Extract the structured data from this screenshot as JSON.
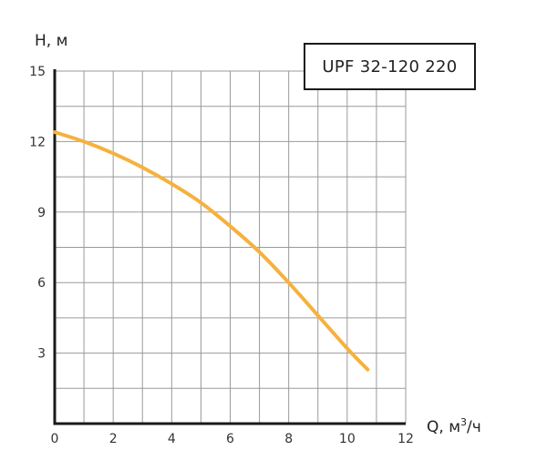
{
  "chart_data": {
    "type": "line",
    "title": "UPF 32-120 220",
    "ylabel": "H, м",
    "xlabel_prefix": "Q, м",
    "xlabel_sup": "3",
    "xlabel_suffix": "/ч",
    "xlim": [
      0,
      12
    ],
    "ylim": [
      0,
      15
    ],
    "x_ticks": [
      0,
      2,
      4,
      6,
      8,
      10,
      12
    ],
    "y_ticks": [
      3,
      6,
      9,
      12,
      15
    ],
    "x_grid_step": 1,
    "y_grid_step": 1.5,
    "grid": true,
    "colors": {
      "curve": "#f6b13d",
      "grid": "#9a9a9a",
      "axis": "#1a1a1a"
    },
    "series": [
      {
        "values_x": [
          0,
          1,
          2,
          3,
          4,
          5,
          6,
          7,
          8,
          9,
          10,
          10.7
        ],
        "values_y": [
          12.4,
          12.0,
          11.5,
          10.9,
          10.2,
          9.4,
          8.4,
          7.3,
          6.0,
          4.6,
          3.2,
          2.3
        ]
      }
    ]
  }
}
